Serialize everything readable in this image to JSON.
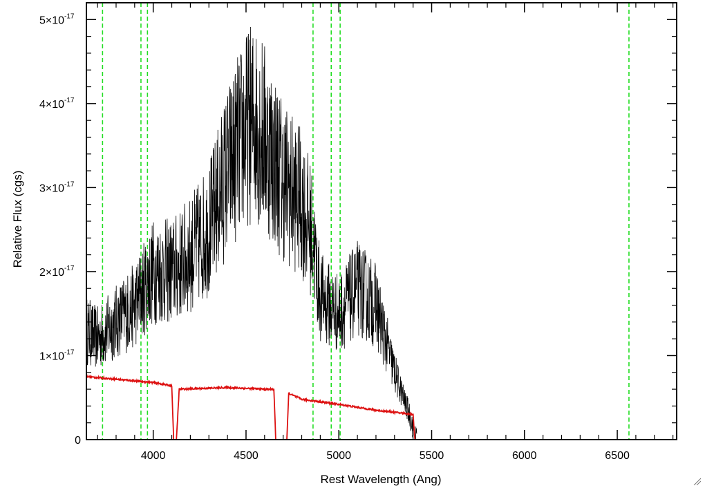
{
  "chart_data": {
    "type": "line",
    "xlabel": "Rest Wavelength (Ang)",
    "ylabel": "Relative Flux (cgs)",
    "xlim": [
      3640,
      6820
    ],
    "ylim": [
      0,
      5.2e-17
    ],
    "x_ticks": [
      4000,
      4500,
      5000,
      5500,
      6000,
      6500
    ],
    "y_ticks": [
      {
        "value": 0,
        "mantissa": "0",
        "exponent": ""
      },
      {
        "value": 1e-17,
        "mantissa": "1×10",
        "exponent": "-17"
      },
      {
        "value": 2e-17,
        "mantissa": "2×10",
        "exponent": "-17"
      },
      {
        "value": 3e-17,
        "mantissa": "3×10",
        "exponent": "-17"
      },
      {
        "value": 4e-17,
        "mantissa": "4×10",
        "exponent": "-17"
      },
      {
        "value": 5e-17,
        "mantissa": "5×10",
        "exponent": "-17"
      }
    ],
    "grid": false,
    "series": [
      {
        "color": "#000000",
        "style": "noisy-spectrum",
        "x": [
          3640,
          3700,
          3800,
          3900,
          4000,
          4100,
          4200,
          4300,
          4400,
          4500,
          4550,
          4600,
          4700,
          4800,
          4850,
          4900,
          5000,
          5100,
          5200,
          5300,
          5380,
          5420
        ],
        "y": [
          1.3e-17,
          1.2e-17,
          1.4e-17,
          1.6e-17,
          2e-17,
          2e-17,
          2.2e-17,
          2.5e-17,
          3.2e-17,
          3.7e-17,
          3.8e-17,
          3.6e-17,
          3.1e-17,
          2.8e-17,
          2.5e-17,
          1.7e-17,
          1.5e-17,
          1.8e-17,
          1.6e-17,
          8e-18,
          3e-18,
          0.0
        ]
      },
      {
        "color": "#dd1111",
        "style": "error-spectrum",
        "x": [
          3640,
          4000,
          4100,
          4110,
          4125,
          4140,
          4400,
          4600,
          4650,
          4660,
          4720,
          4730,
          4800,
          5000,
          5200,
          5400,
          5410,
          6820
        ],
        "y": [
          7.5e-18,
          6.8e-18,
          6.4e-18,
          0.0,
          0.0,
          6e-18,
          6.2e-18,
          6e-18,
          6e-18,
          0.0,
          0.0,
          5.5e-18,
          4.8e-18,
          4.2e-18,
          3.5e-18,
          3e-18,
          0.0,
          0.0
        ]
      }
    ],
    "vertical_lines": [
      {
        "x": 3727,
        "color": "#22dd22",
        "style": "dashed"
      },
      {
        "x": 3934,
        "color": "#22dd22",
        "style": "dashed"
      },
      {
        "x": 3969,
        "color": "#22dd22",
        "style": "dashed"
      },
      {
        "x": 4861,
        "color": "#22dd22",
        "style": "dashed"
      },
      {
        "x": 4959,
        "color": "#22dd22",
        "style": "dashed"
      },
      {
        "x": 5007,
        "color": "#22dd22",
        "style": "dashed"
      },
      {
        "x": 6563,
        "color": "#22dd22",
        "style": "dashed"
      }
    ]
  }
}
